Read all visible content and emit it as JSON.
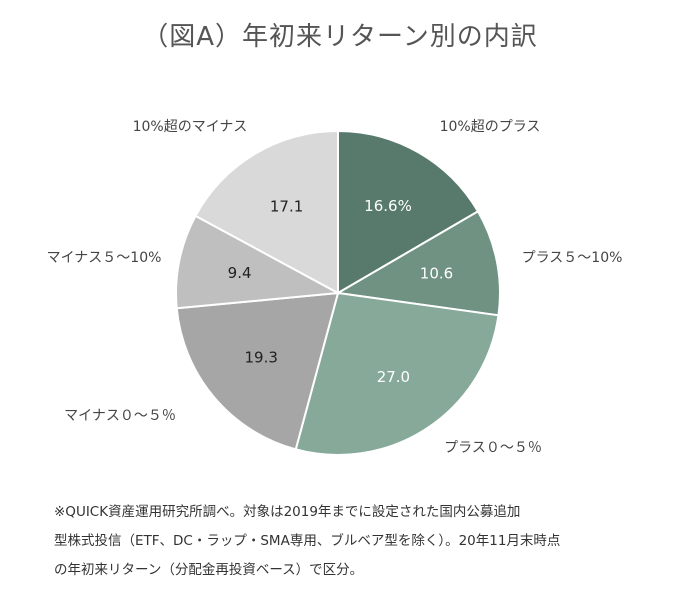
{
  "chart_data": {
    "type": "pie",
    "title": "（図A）年初来リターン別の内訳",
    "categories": [
      "10%超のプラス",
      "プラス５～10%",
      "プラス０～５％",
      "マイナス０～５％",
      "マイナス５～10%",
      "10%超のマイナス"
    ],
    "values": [
      16.6,
      10.6,
      27.0,
      19.3,
      9.4,
      17.1
    ],
    "value_labels": [
      "16.6%",
      "10.6",
      "27.0",
      "19.3",
      "9.4",
      "17.1"
    ],
    "colors": [
      "#587a6d",
      "#6f9283",
      "#86a99a",
      "#a6a6a6",
      "#bfbfbf",
      "#d9d9d9"
    ],
    "value_label_colors": [
      "#ffffff",
      "#ffffff",
      "#ffffff",
      "#222222",
      "#222222",
      "#222222"
    ],
    "start_angle_deg": 0,
    "direction": "clockwise",
    "slice_border_color": "#ffffff",
    "legend": "none"
  },
  "footnote": {
    "lines": [
      "※QUICK資産運用研究所調べ。対象は2019年までに設定された国内公募追加",
      "型株式投信（ETF、DC・ラップ・SMA専用、ブルベア型を除く）。20年11月末時点",
      "の年初来リターン（分配金再投資ベース）で区分。"
    ]
  }
}
